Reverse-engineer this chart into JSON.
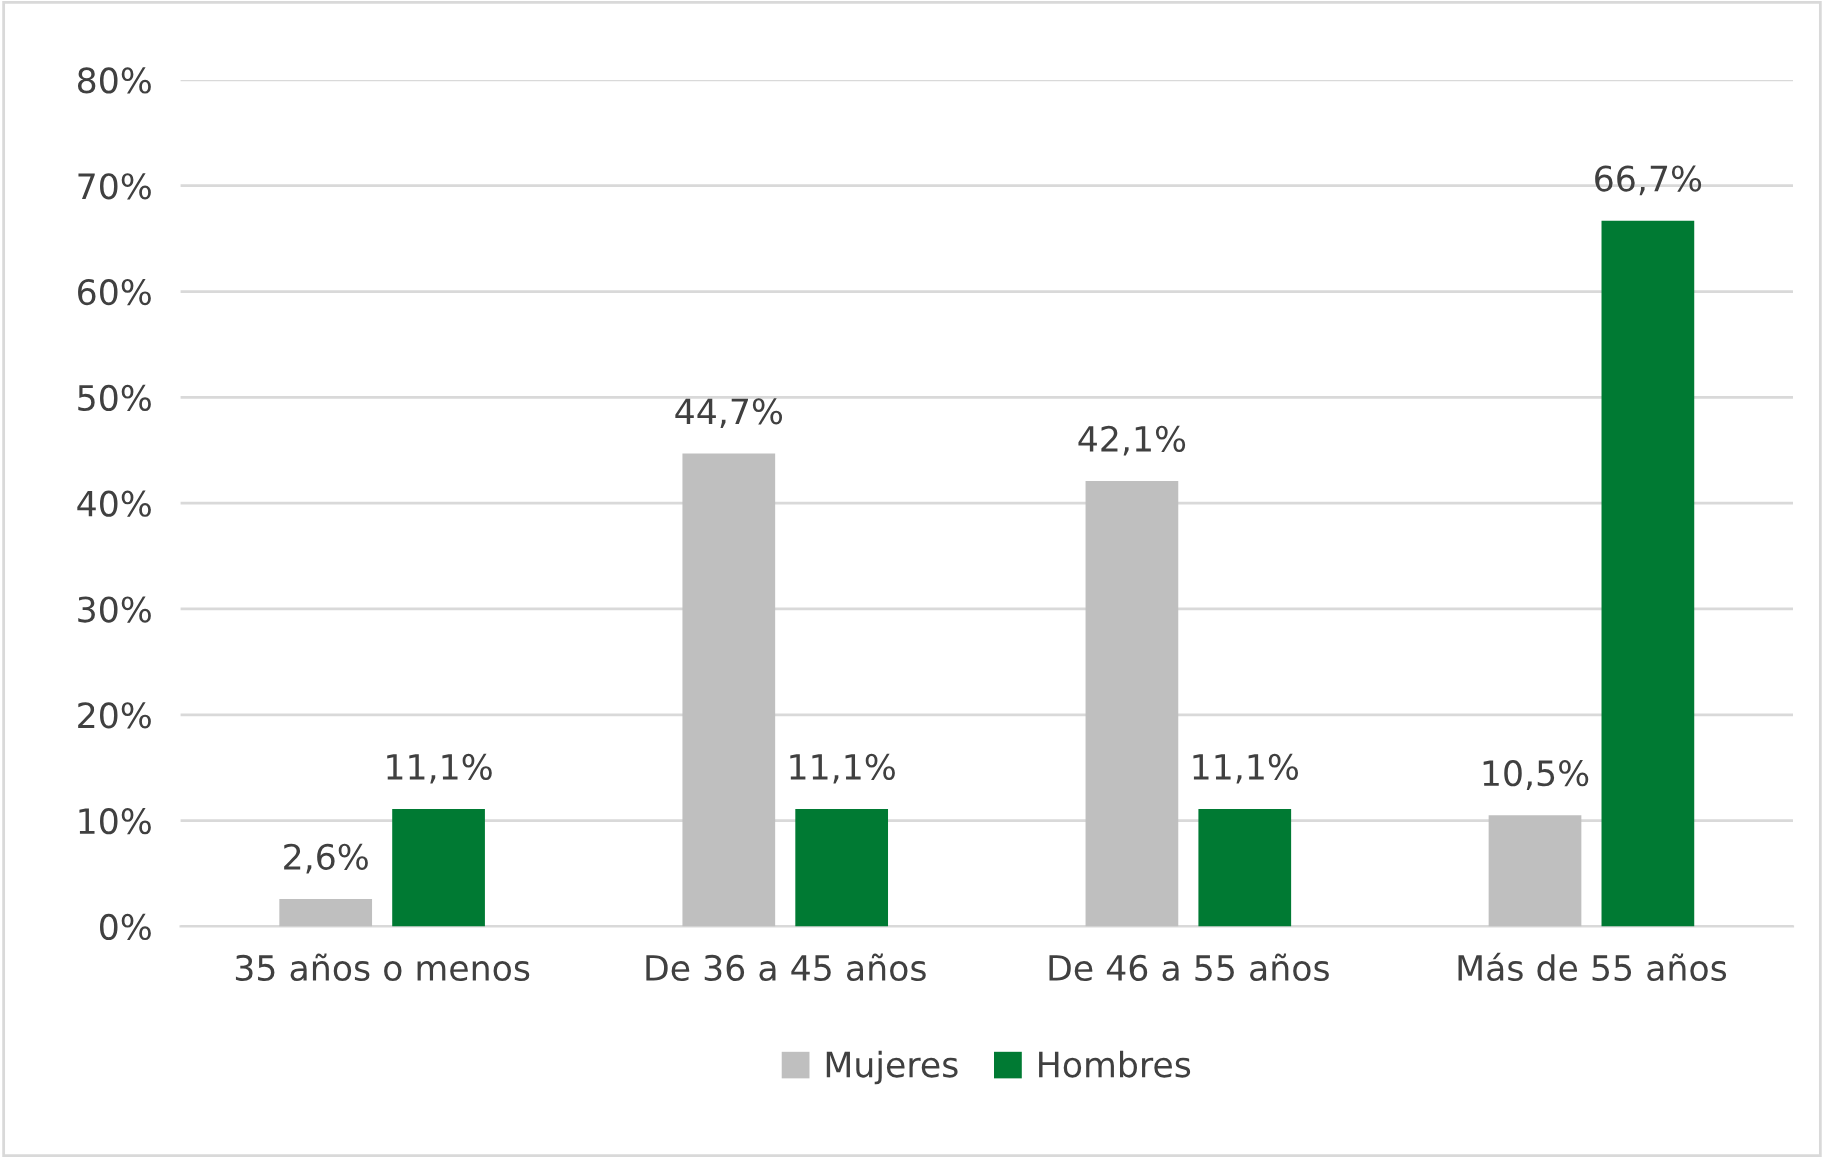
{
  "chart_data": {
    "type": "bar",
    "categories": [
      "35 años o menos",
      "De 36 a 45 años",
      "De 46 a 55 años",
      "Más de 55 años"
    ],
    "series": [
      {
        "name": "Mujeres",
        "color": "#bfbfbf",
        "values": [
          2.6,
          44.7,
          42.1,
          10.5
        ],
        "value_labels": [
          "2,6%",
          "44,7%",
          "42,1%",
          "10,5%"
        ]
      },
      {
        "name": "Hombres",
        "color": "#007a33",
        "values": [
          11.1,
          11.1,
          11.1,
          66.7
        ],
        "value_labels": [
          "11,1%",
          "11,1%",
          "11,1%",
          "66,7%"
        ]
      }
    ],
    "ylim": [
      0,
      80
    ],
    "yticks": [
      {
        "value": 0,
        "label": "0%"
      },
      {
        "value": 10,
        "label": "10%"
      },
      {
        "value": 20,
        "label": "20%"
      },
      {
        "value": 30,
        "label": "30%"
      },
      {
        "value": 40,
        "label": "40%"
      },
      {
        "value": 50,
        "label": "50%"
      },
      {
        "value": 60,
        "label": "60%"
      },
      {
        "value": 70,
        "label": "70%"
      },
      {
        "value": 80,
        "label": "80%"
      }
    ],
    "grid": "y",
    "legend": "bottom"
  }
}
